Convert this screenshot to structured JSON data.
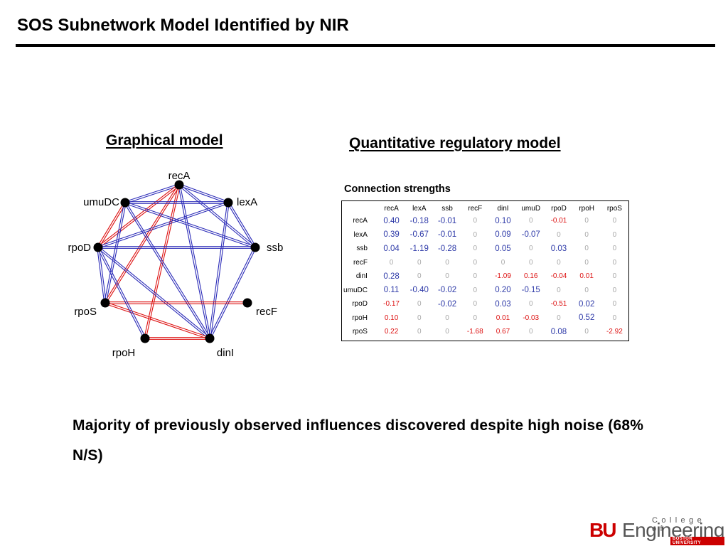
{
  "slide": {
    "title": "SOS Subnetwork Model Identified by NIR",
    "graph_heading": "Graphical model",
    "quant_heading": "Quantitative regulatory model",
    "conclusion": "Majority of previously observed influences discovered despite high noise (68% N/S)"
  },
  "graph": {
    "nodes": [
      "recA",
      "lexA",
      "ssb",
      "recF",
      "dinI",
      "rpoH",
      "rpoS",
      "rpoD",
      "umuDC"
    ],
    "edge_colors": {
      "blue": "#2b2bb8",
      "red": "#dd1111"
    },
    "edges": [
      [
        "recA",
        "lexA",
        "blue"
      ],
      [
        "recA",
        "ssb",
        "blue"
      ],
      [
        "recA",
        "dinI",
        "blue"
      ],
      [
        "recA",
        "umuDC",
        "blue"
      ],
      [
        "recA",
        "rpoD",
        "red"
      ],
      [
        "recA",
        "rpoS",
        "red"
      ],
      [
        "recA",
        "rpoH",
        "red"
      ],
      [
        "lexA",
        "umuDC",
        "blue"
      ],
      [
        "lexA",
        "rpoD",
        "blue"
      ],
      [
        "lexA",
        "ssb",
        "blue"
      ],
      [
        "lexA",
        "dinI",
        "blue"
      ],
      [
        "ssb",
        "umuDC",
        "blue"
      ],
      [
        "ssb",
        "rpoD",
        "blue"
      ],
      [
        "ssb",
        "dinI",
        "blue"
      ],
      [
        "dinI",
        "rpoD",
        "blue"
      ],
      [
        "dinI",
        "rpoS",
        "red"
      ],
      [
        "dinI",
        "rpoH",
        "red"
      ],
      [
        "dinI",
        "umuDC",
        "blue"
      ],
      [
        "rpoS",
        "rpoD",
        "blue"
      ],
      [
        "rpoS",
        "recF",
        "red"
      ],
      [
        "rpoH",
        "rpoD",
        "blue"
      ],
      [
        "rpoD",
        "umuDC",
        "red"
      ],
      [
        "rpoS",
        "umuDC",
        "blue"
      ]
    ]
  },
  "matrix": {
    "caption": "Connection strengths",
    "colors": {
      "positive": "#2e3aa8",
      "negative": "#dd1111",
      "zero": "#a8a8a8"
    },
    "columns": [
      "recA",
      "lexA",
      "ssb",
      "recF",
      "dinI",
      "umuD",
      "rpoD",
      "rpoH",
      "rpoS"
    ],
    "rows": [
      {
        "name": "recA",
        "values": [
          "0.40",
          "-0.18",
          "-0.01",
          "0",
          "0.10",
          "0",
          "-0.01",
          "0",
          "0"
        ]
      },
      {
        "name": "lexA",
        "values": [
          "0.39",
          "-0.67",
          "-0.01",
          "0",
          "0.09",
          "-0.07",
          "0",
          "0",
          "0"
        ]
      },
      {
        "name": "ssb",
        "values": [
          "0.04",
          "-1.19",
          "-0.28",
          "0",
          "0.05",
          "0",
          "0.03",
          "0",
          "0"
        ]
      },
      {
        "name": "recF",
        "values": [
          "0",
          "0",
          "0",
          "0",
          "0",
          "0",
          "0",
          "0",
          "0"
        ]
      },
      {
        "name": "dinI",
        "values": [
          "0.28",
          "0",
          "0",
          "0",
          "-1.09",
          "0.16",
          "-0.04",
          "0.01",
          "0"
        ]
      },
      {
        "name": "umuDC",
        "values": [
          "0.11",
          "-0.40",
          "-0.02",
          "0",
          "0.20",
          "-0.15",
          "0",
          "0",
          "0"
        ]
      },
      {
        "name": "rpoD",
        "values": [
          "-0.17",
          "0",
          "-0.02",
          "0",
          "0.03",
          "0",
          "-0.51",
          "0.02",
          "0"
        ]
      },
      {
        "name": "rpoH",
        "values": [
          "0.10",
          "0",
          "0",
          "0",
          "0.01",
          "-0.03",
          "0",
          "0.52",
          "0"
        ]
      },
      {
        "name": "rpoS",
        "values": [
          "0.22",
          "0",
          "0",
          "-1.68",
          "0.67",
          "0",
          "0.08",
          "0",
          "-2.92"
        ]
      }
    ],
    "cell_styles": [
      [
        "pos",
        "pos",
        "pos",
        "zero",
        "pos",
        "zero",
        "neg",
        "zero",
        "zero"
      ],
      [
        "pos",
        "pos",
        "pos",
        "zero",
        "pos",
        "pos",
        "zero",
        "zero",
        "zero"
      ],
      [
        "pos",
        "pos",
        "pos",
        "zero",
        "pos",
        "zero",
        "pos",
        "zero",
        "zero"
      ],
      [
        "zero",
        "zero",
        "zero",
        "zero",
        "zero",
        "zero",
        "zero",
        "zero",
        "zero"
      ],
      [
        "pos",
        "zero",
        "zero",
        "zero",
        "neg",
        "neg",
        "neg",
        "neg",
        "zero"
      ],
      [
        "pos",
        "pos",
        "pos",
        "zero",
        "pos",
        "pos",
        "zero",
        "zero",
        "zero"
      ],
      [
        "neg",
        "zero",
        "pos",
        "zero",
        "pos",
        "zero",
        "neg",
        "pos",
        "zero"
      ],
      [
        "neg",
        "zero",
        "zero",
        "zero",
        "neg",
        "neg",
        "zero",
        "pos",
        "zero"
      ],
      [
        "neg",
        "zero",
        "zero",
        "neg",
        "neg",
        "zero",
        "pos",
        "zero",
        "neg"
      ]
    ]
  },
  "logo": {
    "bu": "BU",
    "engineering": "Engineering",
    "college": "College of",
    "university": "BOSTON UNIVERSITY"
  }
}
